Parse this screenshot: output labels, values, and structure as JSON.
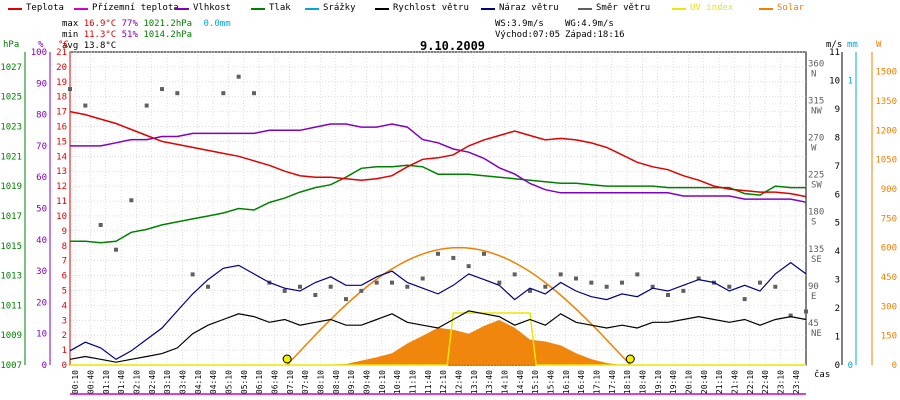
{
  "legend": [
    {
      "label": "Teplota",
      "color": "#e00000"
    },
    {
      "label": "Přízemní teplota",
      "color": "#d000d0"
    },
    {
      "label": "Vlhkost",
      "color": "#8000c0"
    },
    {
      "label": "Tlak",
      "color": "#008000"
    },
    {
      "label": "Srážky",
      "color": "#00a8d8"
    },
    {
      "label": "Rychlost větru",
      "color": "#000000"
    },
    {
      "label": "Náraz větru",
      "color": "#000080"
    },
    {
      "label": "Směr větru",
      "color": "#606060"
    },
    {
      "label": "UV index",
      "color": "#e8e800"
    },
    {
      "label": "Solar",
      "color": "#f08000"
    }
  ],
  "stats": {
    "max_label": "max",
    "max_temp": "16.9°C",
    "max_hum": "77%",
    "max_press": "1021.2hPa",
    "rain": "0.0mm",
    "min_label": "min",
    "min_temp": "11.3°C",
    "min_hum": "51%",
    "min_press": "1014.2hPa",
    "avg_label": "avg",
    "avg_temp": "13.8°C",
    "ws": "WS:3.9m/s",
    "wg": "WG:4.9m/s",
    "sunrise": "Východ:07:05",
    "sunset": "Západ:18:16"
  },
  "title": "9.10.2009",
  "axes": {
    "press_unit": "hPa",
    "hum_unit": "%",
    "temp_unit": "°C",
    "wind_unit": "m/s",
    "rain_unit": "mm",
    "solar_unit": "W",
    "time_label": "čas",
    "press_ticks": [
      "1007",
      "1009",
      "1011",
      "1013",
      "1015",
      "1017",
      "1019",
      "1021",
      "1023",
      "1025",
      "1027"
    ],
    "hum_ticks": [
      "0",
      "10",
      "20",
      "30",
      "40",
      "50",
      "60",
      "70",
      "80",
      "90",
      "100"
    ],
    "temp_ticks": [
      "0",
      "1",
      "2",
      "3",
      "4",
      "5",
      "6",
      "7",
      "8",
      "9",
      "10",
      "11",
      "12",
      "13",
      "14",
      "15",
      "16",
      "17",
      "18",
      "19",
      "20",
      "21"
    ],
    "wind_ticks": [
      "0",
      "1",
      "2",
      "3",
      "4",
      "5",
      "6",
      "7",
      "8",
      "9",
      "10",
      "11"
    ],
    "rain_ticks": [
      "0",
      "1"
    ],
    "solar_ticks": [
      "0",
      "150",
      "300",
      "450",
      "600",
      "750",
      "900",
      "1050",
      "1200",
      "1350",
      "1500"
    ],
    "dir_labels": [
      {
        "deg": "45",
        "c": "NE"
      },
      {
        "deg": "90",
        "c": "E"
      },
      {
        "deg": "135",
        "c": "SE"
      },
      {
        "deg": "180",
        "c": "S"
      },
      {
        "deg": "225",
        "c": "SW"
      },
      {
        "deg": "270",
        "c": "W"
      },
      {
        "deg": "315",
        "c": "NW"
      },
      {
        "deg": "360",
        "c": "N"
      }
    ],
    "time_ticks": [
      "00:10",
      "00:40",
      "01:10",
      "01:40",
      "02:10",
      "02:40",
      "03:10",
      "03:40",
      "04:10",
      "04:40",
      "05:10",
      "05:40",
      "06:10",
      "06:40",
      "07:10",
      "07:40",
      "08:10",
      "08:40",
      "09:10",
      "09:40",
      "10:10",
      "10:40",
      "11:10",
      "11:40",
      "12:10",
      "12:40",
      "13:10",
      "13:40",
      "14:10",
      "14:40",
      "15:10",
      "15:40",
      "16:10",
      "16:40",
      "17:10",
      "17:40",
      "18:10",
      "18:40",
      "19:10",
      "19:40",
      "20:10",
      "20:40",
      "21:10",
      "21:40",
      "22:10",
      "22:40",
      "23:10",
      "23:40"
    ]
  },
  "chart_data": {
    "type": "line",
    "title": "9.10.2009",
    "x_unit": "hour",
    "xlim": [
      0,
      24
    ],
    "series": [
      {
        "name": "Teplota",
        "unit": "°C",
        "color": "#e00000",
        "x": [
          0,
          0.5,
          1,
          1.5,
          2,
          2.5,
          3,
          3.5,
          4,
          4.5,
          5,
          5.5,
          6,
          6.5,
          7,
          7.5,
          8,
          8.5,
          9,
          9.5,
          10,
          10.5,
          11,
          11.5,
          12,
          12.5,
          13,
          13.5,
          14,
          14.5,
          15,
          15.5,
          16,
          16.5,
          17,
          17.5,
          18,
          18.5,
          19,
          19.5,
          20,
          20.5,
          21,
          21.5,
          22,
          22.5,
          23,
          23.5,
          24
        ],
        "y": [
          17.0,
          16.8,
          16.5,
          16.2,
          15.8,
          15.4,
          15.0,
          14.8,
          14.6,
          14.4,
          14.2,
          14.0,
          13.7,
          13.4,
          13.0,
          12.7,
          12.6,
          12.6,
          12.5,
          12.4,
          12.5,
          12.7,
          13.3,
          13.8,
          13.9,
          14.1,
          14.7,
          15.1,
          15.4,
          15.7,
          15.4,
          15.1,
          15.2,
          15.1,
          14.9,
          14.6,
          14.1,
          13.6,
          13.3,
          13.1,
          12.7,
          12.4,
          12.0,
          11.8,
          11.7,
          11.6,
          11.6,
          11.5,
          11.3
        ]
      },
      {
        "name": "Vlhkost",
        "unit": "%",
        "color": "#8000c0",
        "x": [
          0,
          0.5,
          1,
          1.5,
          2,
          2.5,
          3,
          3.5,
          4,
          4.5,
          5,
          5.5,
          6,
          6.5,
          7,
          7.5,
          8,
          8.5,
          9,
          9.5,
          10,
          10.5,
          11,
          11.5,
          12,
          12.5,
          13,
          13.5,
          14,
          14.5,
          15,
          15.5,
          16,
          16.5,
          17,
          17.5,
          18,
          18.5,
          19,
          19.5,
          20,
          20.5,
          21,
          21.5,
          22,
          22.5,
          23,
          23.5,
          24
        ],
        "y": [
          70,
          70,
          70,
          71,
          72,
          72,
          73,
          73,
          74,
          74,
          74,
          74,
          74,
          75,
          75,
          75,
          76,
          77,
          77,
          76,
          76,
          77,
          76,
          72,
          71,
          69,
          68,
          66,
          63,
          61,
          58,
          56,
          55,
          55,
          55,
          55,
          55,
          55,
          55,
          55,
          54,
          54,
          54,
          54,
          53,
          53,
          53,
          53,
          52
        ]
      },
      {
        "name": "Tlak",
        "unit": "hPa",
        "color": "#008000",
        "x": [
          0,
          0.5,
          1,
          1.5,
          2,
          2.5,
          3,
          3.5,
          4,
          4.5,
          5,
          5.5,
          6,
          6.5,
          7,
          7.5,
          8,
          8.5,
          9,
          9.5,
          10,
          10.5,
          11,
          11.5,
          12,
          12.5,
          13,
          13.5,
          14,
          14.5,
          15,
          15.5,
          16,
          16.5,
          17,
          17.5,
          18,
          18.5,
          19,
          19.5,
          20,
          20.5,
          21,
          21.5,
          22,
          22.5,
          23,
          23.5,
          24
        ],
        "y": [
          1015.3,
          1015.3,
          1015.2,
          1015.3,
          1015.9,
          1016.1,
          1016.4,
          1016.6,
          1016.8,
          1017.0,
          1017.2,
          1017.5,
          1017.4,
          1017.9,
          1018.2,
          1018.6,
          1018.9,
          1019.1,
          1019.6,
          1020.2,
          1020.3,
          1020.3,
          1020.4,
          1020.3,
          1019.8,
          1019.8,
          1019.8,
          1019.7,
          1019.6,
          1019.5,
          1019.4,
          1019.3,
          1019.2,
          1019.2,
          1019.1,
          1019.0,
          1019.0,
          1019.0,
          1019.0,
          1018.9,
          1018.9,
          1018.9,
          1018.9,
          1018.9,
          1018.5,
          1018.4,
          1019.0,
          1018.9,
          1018.9
        ]
      },
      {
        "name": "Rychlost větru",
        "unit": "m/s",
        "color": "#000000",
        "x": [
          0,
          0.5,
          1,
          1.5,
          2,
          2.5,
          3,
          3.5,
          4,
          4.5,
          5,
          5.5,
          6,
          6.5,
          7,
          7.5,
          8,
          8.5,
          9,
          9.5,
          10,
          10.5,
          11,
          11.5,
          12,
          12.5,
          13,
          13.5,
          14,
          14.5,
          15,
          15.5,
          16,
          16.5,
          17,
          17.5,
          18,
          18.5,
          19,
          19.5,
          20,
          20.5,
          21,
          21.5,
          22,
          22.5,
          23,
          23.5,
          24
        ],
        "y": [
          0.2,
          0.3,
          0.2,
          0.1,
          0.2,
          0.3,
          0.4,
          0.6,
          1.1,
          1.4,
          1.6,
          1.8,
          1.7,
          1.5,
          1.6,
          1.4,
          1.5,
          1.6,
          1.4,
          1.4,
          1.6,
          1.8,
          1.5,
          1.4,
          1.3,
          1.6,
          1.9,
          1.8,
          1.7,
          1.4,
          1.6,
          1.4,
          1.8,
          1.5,
          1.4,
          1.3,
          1.4,
          1.3,
          1.5,
          1.5,
          1.6,
          1.7,
          1.6,
          1.5,
          1.6,
          1.4,
          1.6,
          1.7,
          1.6
        ]
      },
      {
        "name": "Náraz větru",
        "unit": "m/s",
        "color": "#000080",
        "x": [
          0,
          0.5,
          1,
          1.5,
          2,
          2.5,
          3,
          3.5,
          4,
          4.5,
          5,
          5.5,
          6,
          6.5,
          7,
          7.5,
          8,
          8.5,
          9,
          9.5,
          10,
          10.5,
          11,
          11.5,
          12,
          12.5,
          13,
          13.5,
          14,
          14.5,
          15,
          15.5,
          16,
          16.5,
          17,
          17.5,
          18,
          18.5,
          19,
          19.5,
          20,
          20.5,
          21,
          21.5,
          22,
          22.5,
          23,
          23.5,
          24
        ],
        "y": [
          0.5,
          0.8,
          0.6,
          0.2,
          0.5,
          0.9,
          1.3,
          1.9,
          2.5,
          3.0,
          3.4,
          3.5,
          3.2,
          2.9,
          2.7,
          2.6,
          2.9,
          3.1,
          2.8,
          2.8,
          3.1,
          3.3,
          2.9,
          2.7,
          2.5,
          2.8,
          3.2,
          3.0,
          2.8,
          2.3,
          2.7,
          2.5,
          2.9,
          2.6,
          2.4,
          2.3,
          2.5,
          2.4,
          2.7,
          2.6,
          2.8,
          3.0,
          2.9,
          2.6,
          2.8,
          2.6,
          3.2,
          3.6,
          3.2
        ]
      },
      {
        "name": "Směr větru",
        "unit": "°",
        "color": "#606060",
        "x": [
          0,
          0.5,
          1,
          1.5,
          2,
          2.5,
          3,
          3.5,
          4,
          4.5,
          5,
          5.5,
          6,
          6.5,
          7,
          7.5,
          8,
          8.5,
          9,
          9.5,
          10,
          10.5,
          11,
          11.5,
          12,
          12.5,
          13,
          13.5,
          14,
          14.5,
          15,
          15.5,
          16,
          16.5,
          17,
          17.5,
          18,
          18.5,
          19,
          19.5,
          20,
          20.5,
          21,
          21.5,
          22,
          22.5,
          23,
          23.5,
          24
        ],
        "y": [
          335,
          315,
          170,
          140,
          200,
          315,
          335,
          330,
          110,
          95,
          330,
          350,
          330,
          100,
          90,
          95,
          85,
          95,
          80,
          90,
          100,
          100,
          95,
          105,
          135,
          130,
          120,
          135,
          100,
          110,
          90,
          95,
          110,
          105,
          100,
          95,
          100,
          110,
          95,
          85,
          90,
          105,
          100,
          95,
          80,
          100,
          95,
          60,
          65
        ]
      },
      {
        "name": "Solar",
        "unit": "W",
        "color": "#f08000",
        "x": [
          7,
          8,
          9,
          10,
          10.5,
          11,
          11.5,
          12,
          12.5,
          13,
          13.5,
          14,
          14.5,
          15,
          15.5,
          16,
          16.5,
          17,
          17.5,
          18
        ],
        "y": [
          0,
          0,
          5,
          40,
          60,
          110,
          150,
          190,
          180,
          160,
          200,
          230,
          190,
          130,
          120,
          100,
          60,
          30,
          10,
          0
        ]
      },
      {
        "name": "UV index",
        "unit": "",
        "color": "#e8e800",
        "x": [
          0,
          12.3,
          12.5,
          14.5,
          15.0,
          15.2,
          24
        ],
        "y": [
          0,
          0,
          1,
          1,
          1,
          0,
          0
        ]
      }
    ],
    "sunrise_hour": 7.08,
    "sunset_hour": 18.27,
    "solar_clear_sky_peak": 600,
    "ylim_temp": [
      0,
      21
    ],
    "ylim_hum": [
      0,
      100
    ],
    "ylim_press": [
      1007,
      1028
    ],
    "ylim_wind": [
      0,
      11
    ],
    "ylim_solar": [
      0,
      1600
    ],
    "grid": true
  }
}
